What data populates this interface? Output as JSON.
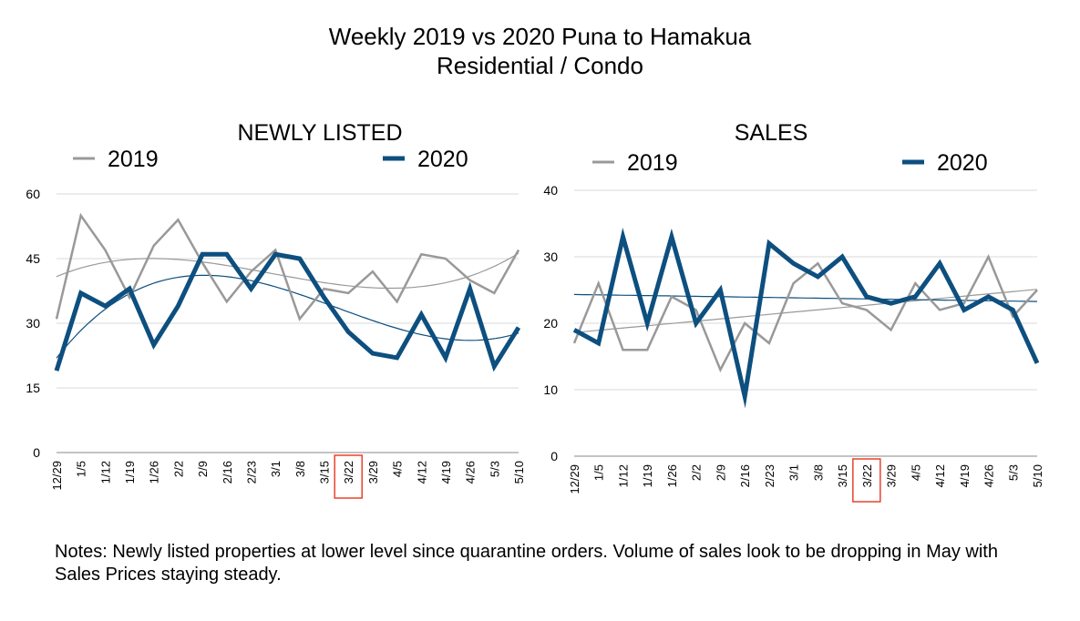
{
  "page": {
    "title_line1": "Weekly 2019 vs 2020 Puna to Hamakua",
    "title_line2": "Residential / Condo",
    "notes": "Notes: Newly listed properties at lower level since quarantine orders. Volume of sales look to be dropping in May with Sales Prices staying steady."
  },
  "colors": {
    "series_2019": "#999999",
    "series_2020": "#0d4f7f",
    "highlight": "#e8432c",
    "grid": "#d9d9d9"
  },
  "chart_data": [
    {
      "type": "line",
      "title": "NEWLY LISTED",
      "categories": [
        "12/29",
        "1/5",
        "1/12",
        "1/19",
        "1/26",
        "2/2",
        "2/9",
        "2/16",
        "2/23",
        "3/1",
        "3/8",
        "3/15",
        "3/22",
        "3/29",
        "4/5",
        "4/12",
        "4/19",
        "4/26",
        "5/3",
        "5/10"
      ],
      "highlight_category": "3/22",
      "yticks": [
        0,
        15,
        30,
        45,
        60
      ],
      "ylim": [
        0,
        60
      ],
      "legend": "top",
      "grid": true,
      "series": [
        {
          "name": "2019",
          "values": [
            31,
            55,
            47,
            36,
            48,
            54,
            44,
            35,
            42,
            47,
            31,
            38,
            37,
            42,
            35,
            46,
            45,
            40,
            37,
            47
          ]
        },
        {
          "name": "2020",
          "values": [
            19,
            37,
            34,
            38,
            25,
            34,
            46,
            46,
            38,
            46,
            45,
            36,
            28,
            23,
            22,
            32,
            22,
            38,
            20,
            29
          ]
        }
      ]
    },
    {
      "type": "line",
      "title": "SALES",
      "categories": [
        "12/29",
        "1/5",
        "1/12",
        "1/19",
        "1/26",
        "2/2",
        "2/9",
        "2/16",
        "2/23",
        "3/1",
        "3/8",
        "3/15",
        "3/22",
        "3/29",
        "4/5",
        "4/12",
        "4/19",
        "4/26",
        "5/3",
        "5/10"
      ],
      "highlight_category": "3/22",
      "yticks": [
        0,
        10,
        20,
        30,
        40
      ],
      "ylim": [
        0,
        40
      ],
      "legend": "top",
      "grid": true,
      "series": [
        {
          "name": "2019",
          "values": [
            17,
            26,
            16,
            16,
            24,
            22,
            13,
            20,
            17,
            26,
            29,
            23,
            22,
            19,
            26,
            22,
            23,
            30,
            21,
            25
          ]
        },
        {
          "name": "2020",
          "values": [
            19,
            17,
            33,
            20,
            33,
            20,
            25,
            9,
            32,
            29,
            27,
            30,
            24,
            23,
            24,
            29,
            22,
            24,
            22,
            14
          ]
        }
      ]
    }
  ]
}
